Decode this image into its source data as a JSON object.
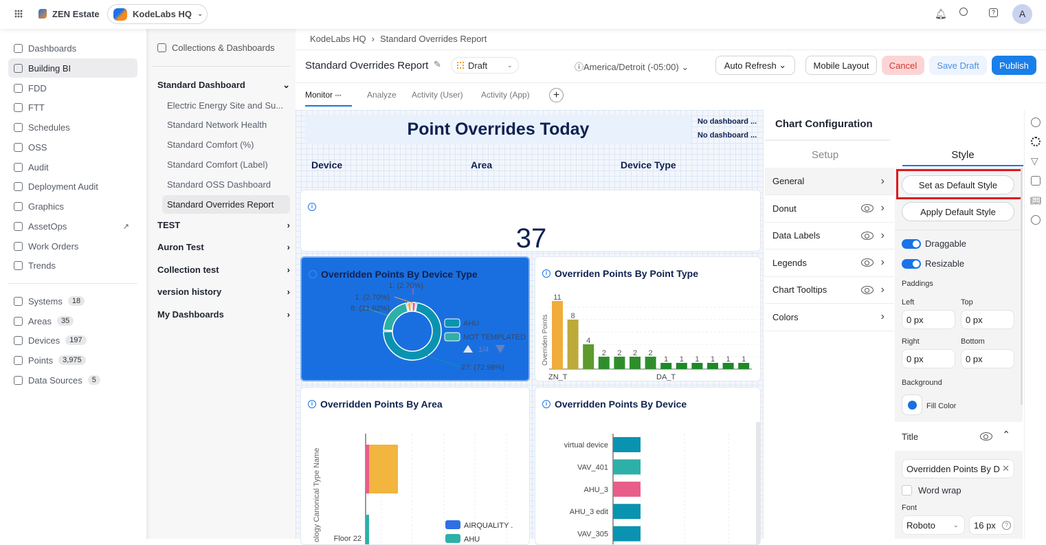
{
  "topbar": {
    "brand": "ZEN Estate",
    "site": "KodeLabs HQ",
    "avatar": "A"
  },
  "sidebar": {
    "items": [
      {
        "label": "Dashboards"
      },
      {
        "label": "Building BI",
        "active": true
      },
      {
        "label": "FDD"
      },
      {
        "label": "FTT"
      },
      {
        "label": "Schedules"
      },
      {
        "label": "OSS"
      },
      {
        "label": "Audit"
      },
      {
        "label": "Deployment Audit"
      },
      {
        "label": "Graphics"
      },
      {
        "label": "AssetOps"
      },
      {
        "label": "Work Orders"
      },
      {
        "label": "Trends"
      }
    ],
    "counts": [
      {
        "label": "Systems",
        "count": "18"
      },
      {
        "label": "Areas",
        "count": "35"
      },
      {
        "label": "Devices",
        "count": "197"
      },
      {
        "label": "Points",
        "count": "3,975"
      },
      {
        "label": "Data Sources",
        "count": "5"
      }
    ]
  },
  "collections": {
    "header": "Collections & Dashboards",
    "open": "Standard Dashboard",
    "dashboards": [
      "Electric Energy Site and Su...",
      "Standard Network Health",
      "Standard Comfort (%)",
      "Standard Comfort (Label)",
      "Standard OSS Dashboard",
      "Standard Overrides Report"
    ],
    "others": [
      "TEST",
      "Auron Test",
      "Collection test",
      "version history",
      "My Dashboards"
    ]
  },
  "header": {
    "breadcrumb": [
      "KodeLabs HQ",
      "Standard Overrides Report"
    ],
    "title": "Standard Overrides Report",
    "status": "Draft",
    "timezone": "America/Detroit (-05:00)",
    "auto_refresh": "Auto Refresh",
    "mobile_layout": "Mobile Layout",
    "cancel": "Cancel",
    "save_draft": "Save Draft",
    "publish": "Publish",
    "tabs": [
      "Monitor",
      "Analyze",
      "Activity (User)",
      "Activity (App)"
    ]
  },
  "dashboard": {
    "title": "Point Overrides Today",
    "no_dash": [
      "No dashboard ...",
      "No dashboard ..."
    ],
    "filters": [
      "Device",
      "Area",
      "Device Type"
    ],
    "kpi": "37",
    "donut": {
      "title": "Overridden Points By Device Type",
      "slices": [
        {
          "name": "AHU",
          "value": 27,
          "label": "27:  (72.98%)",
          "color": "#0a93b0"
        },
        {
          "name": "NOT TEMPLATED",
          "value": 8,
          "label": "8:  (21.62%)",
          "color": "#2db0a8"
        },
        {
          "value": 1,
          "label": "1:  (2.70%)",
          "color": "#f2a43a"
        },
        {
          "value": 1,
          "label": "1:  (2.70%)",
          "color": "#e85d8a"
        }
      ],
      "legend_page": "1/4",
      "bg": "#1a6fe0"
    },
    "bar": {
      "title": "Overriden Points By Point Type",
      "ylabel": "Overriden Points",
      "xlabels": [
        "ZN_T",
        "DA_T"
      ],
      "values": [
        11,
        8,
        4,
        2,
        2,
        2,
        2,
        1,
        1,
        1,
        1,
        1,
        1
      ],
      "colors": [
        "#f0ad3c",
        "#bcaa3b",
        "#5c9b2c",
        "#2e8f2a",
        "#2e8f2a",
        "#2e8f2a",
        "#2e8f2a",
        "#1c8a26",
        "#1c8a26",
        "#1c8a26",
        "#1c8a26",
        "#1c8a26",
        "#1c8a26"
      ]
    },
    "area": {
      "title": "Overridden Points By Area",
      "ylabel": "ology Canonical Type Name",
      "category": "Floor 22",
      "legend": [
        {
          "name": "AIRQUALITY .",
          "color": "#2f6fe4"
        },
        {
          "name": "AHU",
          "color": "#2db0a8"
        }
      ]
    },
    "device": {
      "title": "Overridden Points By Device",
      "rows": [
        {
          "name": "virtual device",
          "color": "#0a93b0"
        },
        {
          "name": "VAV_401",
          "color": "#2db0a8"
        },
        {
          "name": "AHU_3",
          "color": "#e85d8a"
        },
        {
          "name": "AHU_3 edit",
          "color": "#0a93b0"
        },
        {
          "name": "VAV_305",
          "color": "#0a93b0"
        }
      ]
    }
  },
  "config": {
    "title": "Chart Configuration",
    "tabs": [
      "Setup",
      "Style"
    ],
    "sections": [
      "General",
      "Donut",
      "Data Labels",
      "Legends",
      "Chart Tooltips",
      "Colors"
    ],
    "set_default": "Set as Default Style",
    "apply_default": "Apply Default Style",
    "draggable": "Draggable",
    "resizable": "Resizable",
    "paddings": "Paddings",
    "pad": {
      "left_label": "Left",
      "top_label": "Top",
      "right_label": "Right",
      "bottom_label": "Bottom",
      "left": "0 px",
      "top": "0 px",
      "right": "0 px",
      "bottom": "0 px"
    },
    "background": "Background",
    "fill_color": "Fill Color",
    "fill_hex": "#1a6fe0",
    "title_section": "Title",
    "title_value": "Overridden Points By D",
    "word_wrap": "Word wrap",
    "font_label": "Font",
    "font": "Roboto",
    "font_size": "16 px"
  }
}
